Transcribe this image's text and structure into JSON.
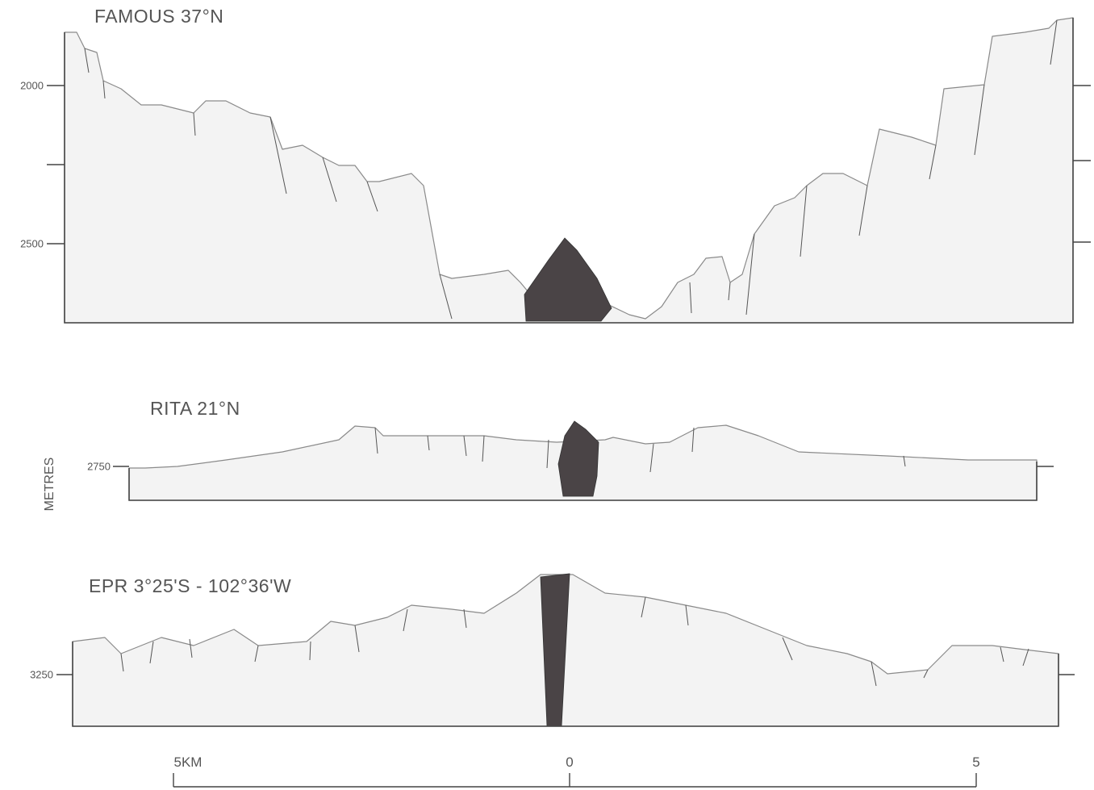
{
  "profiles": [
    {
      "title": "FAMOUS 37°N",
      "tick_labels": [
        "2000",
        "2500"
      ]
    },
    {
      "title": "RITA 21°N",
      "tick_labels": [
        "2750"
      ]
    },
    {
      "title": "EPR 3°25'S - 102°36'W",
      "tick_labels": [
        "3250"
      ]
    }
  ],
  "axis_label": "METRES",
  "scale_bar": {
    "left": "5KM",
    "center": "0",
    "right": "5"
  }
}
